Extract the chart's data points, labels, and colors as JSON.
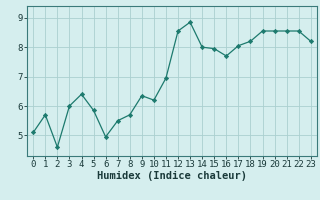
{
  "x": [
    0,
    1,
    2,
    3,
    4,
    5,
    6,
    7,
    8,
    9,
    10,
    11,
    12,
    13,
    14,
    15,
    16,
    17,
    18,
    19,
    20,
    21,
    22,
    23
  ],
  "y": [
    5.1,
    5.7,
    4.6,
    6.0,
    6.4,
    5.85,
    4.95,
    5.5,
    5.7,
    6.35,
    6.2,
    6.95,
    8.55,
    8.85,
    8.0,
    7.95,
    7.7,
    8.05,
    8.2,
    8.55,
    8.55,
    8.55,
    8.55,
    8.2
  ],
  "line_color": "#1d7a6e",
  "marker": "D",
  "marker_size": 2.2,
  "bg_color": "#d5eeee",
  "grid_color": "#aad0d0",
  "xlabel": "Humidex (Indice chaleur)",
  "xlim": [
    -0.5,
    23.5
  ],
  "ylim": [
    4.3,
    9.4
  ],
  "yticks": [
    5,
    6,
    7,
    8,
    9
  ],
  "xticks": [
    0,
    1,
    2,
    3,
    4,
    5,
    6,
    7,
    8,
    9,
    10,
    11,
    12,
    13,
    14,
    15,
    16,
    17,
    18,
    19,
    20,
    21,
    22,
    23
  ],
  "tick_fontsize": 6.5,
  "xlabel_fontsize": 7.5
}
